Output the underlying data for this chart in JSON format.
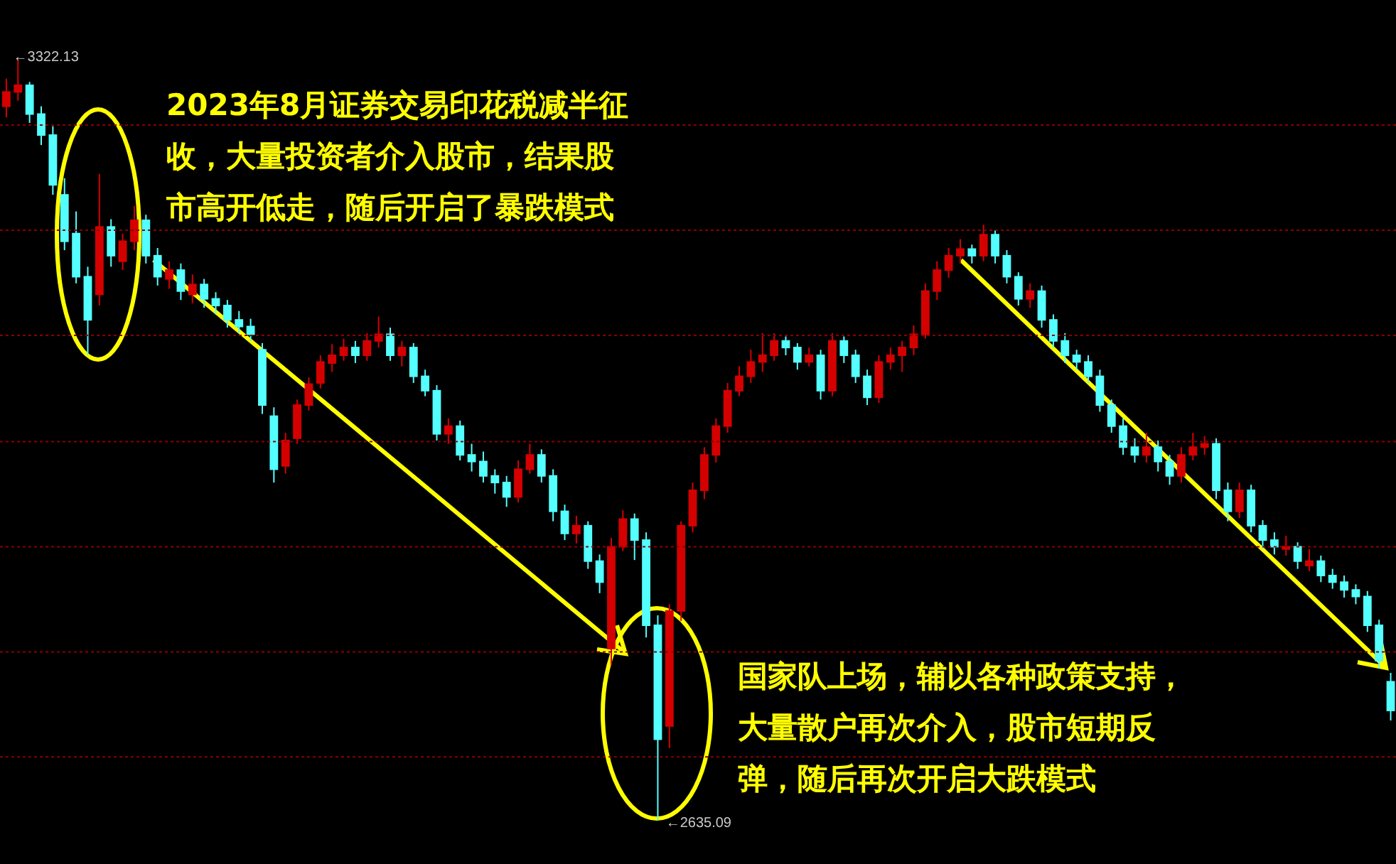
{
  "chart_data": {
    "type": "candlestick",
    "categories": [
      null,
      null,
      null,
      null,
      null,
      null,
      null,
      null,
      null,
      null,
      null,
      null,
      null,
      null,
      null,
      null,
      null,
      null,
      null,
      null,
      null,
      null,
      null,
      null,
      null,
      null,
      null,
      null,
      null,
      null,
      null,
      null,
      null,
      null,
      null,
      null,
      null,
      null,
      null,
      null,
      null,
      null,
      null,
      null,
      null,
      null,
      null,
      null,
      null,
      null,
      null,
      null,
      null,
      null,
      null,
      null,
      null,
      null,
      null,
      null,
      null,
      null,
      null,
      null,
      null,
      null,
      null,
      null,
      null,
      null,
      null,
      null,
      null,
      null,
      null,
      null,
      null,
      null,
      null,
      null,
      null,
      null,
      null,
      null,
      null,
      null,
      null,
      null,
      null,
      null,
      null,
      null,
      null,
      null,
      null,
      null,
      null,
      null,
      null,
      null,
      null,
      null,
      null,
      null,
      null,
      null,
      null,
      null,
      null,
      null,
      null,
      null,
      null,
      null,
      null,
      null,
      null,
      null,
      null,
      null
    ],
    "ohlc": [
      [
        3280,
        3305,
        3270,
        3293
      ],
      [
        3293,
        3322.13,
        3285,
        3299
      ],
      [
        3299,
        3302,
        3265,
        3273
      ],
      [
        3273,
        3280,
        3245,
        3254
      ],
      [
        3254,
        3262,
        3200,
        3209
      ],
      [
        3200,
        3215,
        3150,
        3158
      ],
      [
        3165,
        3185,
        3120,
        3126
      ],
      [
        3126,
        3135,
        3055,
        3087
      ],
      [
        3110,
        3219,
        3100,
        3171
      ],
      [
        3171,
        3178,
        3135,
        3145
      ],
      [
        3140,
        3165,
        3132,
        3158
      ],
      [
        3158,
        3190,
        3150,
        3177
      ],
      [
        3177,
        3182,
        3138,
        3145
      ],
      [
        3145,
        3152,
        3118,
        3126
      ],
      [
        3124,
        3140,
        3115,
        3132
      ],
      [
        3132,
        3138,
        3105,
        3113
      ],
      [
        3110,
        3128,
        3102,
        3119
      ],
      [
        3119,
        3124,
        3098,
        3106
      ],
      [
        3106,
        3112,
        3092,
        3100
      ],
      [
        3100,
        3105,
        3080,
        3087
      ],
      [
        3087,
        3095,
        3075,
        3081
      ],
      [
        3081,
        3088,
        3068,
        3074
      ],
      [
        3060,
        3066,
        3002,
        3010
      ],
      [
        3000,
        3008,
        2940,
        2952
      ],
      [
        2955,
        2985,
        2948,
        2978
      ],
      [
        2980,
        3015,
        2975,
        3010
      ],
      [
        3010,
        3035,
        3005,
        3029
      ],
      [
        3030,
        3055,
        3025,
        3049
      ],
      [
        3048,
        3065,
        3040,
        3055
      ],
      [
        3055,
        3070,
        3050,
        3062
      ],
      [
        3062,
        3068,
        3048,
        3055
      ],
      [
        3055,
        3075,
        3050,
        3068
      ],
      [
        3068,
        3090,
        3062,
        3074
      ],
      [
        3074,
        3080,
        3050,
        3055
      ],
      [
        3055,
        3068,
        3045,
        3062
      ],
      [
        3062,
        3066,
        3030,
        3036
      ],
      [
        3036,
        3042,
        3018,
        3023
      ],
      [
        3023,
        3028,
        2978,
        2984
      ],
      [
        2984,
        2998,
        2975,
        2991
      ],
      [
        2991,
        2996,
        2960,
        2965
      ],
      [
        2965,
        2975,
        2950,
        2959
      ],
      [
        2959,
        2968,
        2940,
        2946
      ],
      [
        2946,
        2952,
        2930,
        2940
      ],
      [
        2940,
        2946,
        2918,
        2927
      ],
      [
        2927,
        2960,
        2922,
        2952
      ],
      [
        2952,
        2975,
        2948,
        2965
      ],
      [
        2965,
        2970,
        2940,
        2946
      ],
      [
        2946,
        2952,
        2905,
        2914
      ],
      [
        2914,
        2920,
        2888,
        2894
      ],
      [
        2894,
        2910,
        2885,
        2901
      ],
      [
        2901,
        2905,
        2862,
        2869
      ],
      [
        2869,
        2875,
        2840,
        2850
      ],
      [
        2790,
        2890,
        2775,
        2882
      ],
      [
        2882,
        2915,
        2878,
        2907
      ],
      [
        2907,
        2912,
        2870,
        2888
      ],
      [
        2888,
        2895,
        2800,
        2811
      ],
      [
        2811,
        2820,
        2635.09,
        2708
      ],
      [
        2720,
        2830,
        2700,
        2824
      ],
      [
        2824,
        2905,
        2815,
        2901
      ],
      [
        2901,
        2940,
        2895,
        2933
      ],
      [
        2933,
        2972,
        2925,
        2965
      ],
      [
        2965,
        2998,
        2958,
        2991
      ],
      [
        2991,
        3030,
        2985,
        3023
      ],
      [
        3023,
        3045,
        3018,
        3036
      ],
      [
        3036,
        3060,
        3030,
        3049
      ],
      [
        3049,
        3075,
        3040,
        3055
      ],
      [
        3055,
        3075,
        3050,
        3068
      ],
      [
        3068,
        3072,
        3055,
        3062
      ],
      [
        3062,
        3066,
        3042,
        3049
      ],
      [
        3049,
        3062,
        3045,
        3055
      ],
      [
        3055,
        3060,
        3015,
        3023
      ],
      [
        3023,
        3075,
        3018,
        3068
      ],
      [
        3068,
        3072,
        3048,
        3055
      ],
      [
        3055,
        3060,
        3030,
        3036
      ],
      [
        3036,
        3042,
        3010,
        3017
      ],
      [
        3017,
        3055,
        3012,
        3049
      ],
      [
        3049,
        3062,
        3042,
        3055
      ],
      [
        3055,
        3068,
        3040,
        3062
      ],
      [
        3062,
        3082,
        3055,
        3074
      ],
      [
        3074,
        3120,
        3070,
        3113
      ],
      [
        3113,
        3140,
        3105,
        3132
      ],
      [
        3132,
        3152,
        3125,
        3145
      ],
      [
        3145,
        3160,
        3138,
        3151
      ],
      [
        3151,
        3155,
        3138,
        3145
      ],
      [
        3145,
        3173,
        3140,
        3164
      ],
      [
        3164,
        3168,
        3138,
        3145
      ],
      [
        3145,
        3150,
        3120,
        3126
      ],
      [
        3126,
        3130,
        3100,
        3106
      ],
      [
        3106,
        3120,
        3098,
        3113
      ],
      [
        3113,
        3118,
        3080,
        3087
      ],
      [
        3087,
        3092,
        3062,
        3068
      ],
      [
        3068,
        3075,
        3048,
        3055
      ],
      [
        3055,
        3060,
        3042,
        3049
      ],
      [
        3049,
        3055,
        3030,
        3036
      ],
      [
        3036,
        3042,
        3004,
        3010
      ],
      [
        3010,
        3015,
        2985,
        2991
      ],
      [
        2991,
        2998,
        2965,
        2972
      ],
      [
        2972,
        2980,
        2958,
        2965
      ],
      [
        2965,
        2985,
        2958,
        2972
      ],
      [
        2972,
        2978,
        2950,
        2959
      ],
      [
        2959,
        2965,
        2938,
        2946
      ],
      [
        2946,
        2972,
        2940,
        2965
      ],
      [
        2965,
        2985,
        2960,
        2972
      ],
      [
        2972,
        2982,
        2965,
        2975
      ],
      [
        2975,
        2980,
        2925,
        2933
      ],
      [
        2933,
        2940,
        2905,
        2914
      ],
      [
        2914,
        2940,
        2908,
        2933
      ],
      [
        2933,
        2938,
        2895,
        2901
      ],
      [
        2901,
        2906,
        2880,
        2888
      ],
      [
        2888,
        2895,
        2875,
        2882
      ],
      [
        2880,
        2892,
        2874,
        2882
      ],
      [
        2882,
        2886,
        2862,
        2869
      ],
      [
        2865,
        2880,
        2860,
        2869
      ],
      [
        2869,
        2874,
        2850,
        2856
      ],
      [
        2856,
        2862,
        2844,
        2850
      ],
      [
        2850,
        2856,
        2836,
        2843
      ],
      [
        2843,
        2848,
        2830,
        2837
      ],
      [
        2837,
        2842,
        2805,
        2811
      ],
      [
        2811,
        2816,
        2772,
        2779
      ],
      [
        2760,
        2768,
        2725,
        2734
      ]
    ],
    "colors": [
      "#d40000",
      "#d40000",
      "#54ffff",
      "#54ffff",
      "#54ffff",
      "#54ffff",
      "#54ffff",
      "#54ffff",
      "#d40000",
      "#54ffff",
      "#d40000",
      "#d40000",
      "#54ffff",
      "#54ffff",
      "#d40000",
      "#54ffff",
      "#d40000",
      "#54ffff",
      "#54ffff",
      "#54ffff",
      "#54ffff",
      "#54ffff",
      "#54ffff",
      "#54ffff",
      "#d40000",
      "#d40000",
      "#d40000",
      "#d40000",
      "#d40000",
      "#d40000",
      "#54ffff",
      "#d40000",
      "#d40000",
      "#54ffff",
      "#d40000",
      "#54ffff",
      "#54ffff",
      "#54ffff",
      "#d40000",
      "#54ffff",
      "#54ffff",
      "#54ffff",
      "#54ffff",
      "#54ffff",
      "#d40000",
      "#d40000",
      "#54ffff",
      "#54ffff",
      "#54ffff",
      "#d40000",
      "#54ffff",
      "#54ffff",
      "#d40000",
      "#d40000",
      "#54ffff",
      "#54ffff",
      "#54ffff",
      "#d40000",
      "#d40000",
      "#d40000",
      "#d40000",
      "#d40000",
      "#d40000",
      "#d40000",
      "#d40000",
      "#d40000",
      "#d40000",
      "#54ffff",
      "#54ffff",
      "#d40000",
      "#54ffff",
      "#d40000",
      "#54ffff",
      "#54ffff",
      "#54ffff",
      "#d40000",
      "#d40000",
      "#d40000",
      "#d40000",
      "#d40000",
      "#d40000",
      "#d40000",
      "#d40000",
      "#54ffff",
      "#d40000",
      "#54ffff",
      "#54ffff",
      "#54ffff",
      "#d40000",
      "#54ffff",
      "#54ffff",
      "#54ffff",
      "#54ffff",
      "#54ffff",
      "#54ffff",
      "#54ffff",
      "#54ffff",
      "#54ffff",
      "#d40000",
      "#54ffff",
      "#54ffff",
      "#d40000",
      "#d40000",
      "#d40000",
      "#54ffff",
      "#54ffff",
      "#d40000",
      "#54ffff",
      "#54ffff",
      "#54ffff",
      "#d40000",
      "#54ffff",
      "#d40000",
      "#54ffff",
      "#54ffff",
      "#54ffff",
      "#54ffff",
      "#54ffff",
      "#54ffff",
      "#54ffff"
    ],
    "yticks": [
      {
        "value": 3263,
        "label": null
      },
      {
        "value": 3168,
        "label": null
      },
      {
        "value": 3073,
        "label": null
      },
      {
        "value": 2977,
        "label": null
      },
      {
        "value": 2882,
        "label": null
      },
      {
        "value": 2787,
        "label": null
      },
      {
        "value": 2692,
        "label": null
      }
    ],
    "grid": "y",
    "tick_labels": false,
    "annotations": [
      "2023年8月证券交易印花税减半征收，大量投资者介入股市，结果股市高开低走，随后开启了暴跌模式",
      "国家队上场，辅以各种政策支持，大量散户再次介入，股市短期反弹，随后再次开启大跌模式",
      "←3322.13",
      "←2635.09"
    ]
  }
}
